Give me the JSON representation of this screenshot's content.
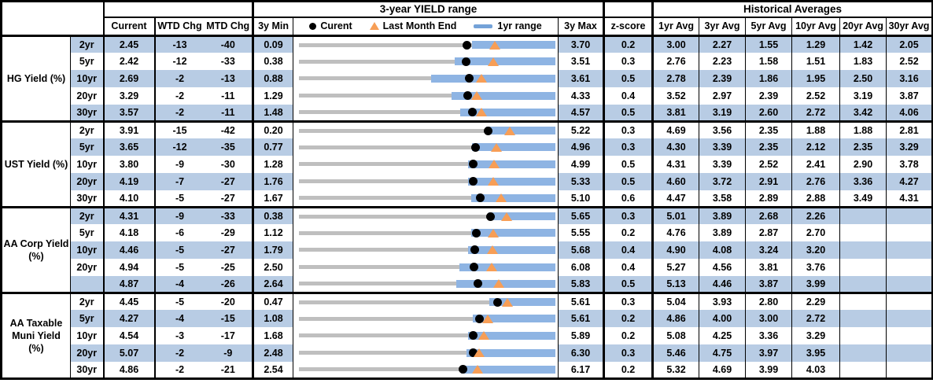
{
  "colors": {
    "row_shade_blue": "#b8cce4",
    "range_bar_blue": "#8eb4e3",
    "track_gray": "#bfbfbf",
    "triangle_orange": "#f79e56",
    "legend_dash_blue": "#74a2d8",
    "dot_black": "#000000",
    "border_black": "#000000"
  },
  "chart_data": {
    "type": "table",
    "groups_header": {
      "range": "3-year YIELD range",
      "historical": "Historical Averages"
    },
    "columns": {
      "current": "Current",
      "wtd": "WTD Chg",
      "mtd": "MTD Chg",
      "min": "3y Min",
      "max": "3y Max",
      "z": "z-score",
      "avgs": [
        "1yr Avg",
        "3yr Avg",
        "5yr Avg",
        "10yr Avg",
        "20yr Avg",
        "30yr Avg"
      ]
    },
    "legend": {
      "current": "Curent",
      "last_month_end": "Last Month End",
      "range_1yr": "1yr range"
    },
    "range_chart_encoding": "Per row: gray track spans 3y Min to 3y Max; blue bar = 1yr range; black dot = current yield; orange triangle = last month end (current - MTD chg/100).",
    "sections": [
      {
        "label_lines": [
          "HG Yield (%)"
        ],
        "rows": [
          {
            "tenor": "2yr",
            "current": "2.45",
            "wtd_chg": "-13",
            "mtd_chg": "-40",
            "min_3y": "0.09",
            "max_3y": "3.70",
            "z_score": "0.2",
            "avgs": [
              "3.00",
              "2.27",
              "1.55",
              "1.29",
              "1.42",
              "2.05"
            ],
            "last_month_end": 2.85,
            "range_1yr": [
              2.53,
              3.7
            ]
          },
          {
            "tenor": "5yr",
            "current": "2.42",
            "wtd_chg": "-12",
            "mtd_chg": "-33",
            "min_3y": "0.38",
            "max_3y": "3.51",
            "z_score": "0.3",
            "avgs": [
              "2.76",
              "2.23",
              "1.58",
              "1.51",
              "1.83",
              "2.52"
            ],
            "last_month_end": 2.75,
            "range_1yr": [
              2.28,
              3.51
            ]
          },
          {
            "tenor": "10yr",
            "current": "2.69",
            "wtd_chg": "-2",
            "mtd_chg": "-13",
            "min_3y": "0.88",
            "max_3y": "3.61",
            "z_score": "0.5",
            "avgs": [
              "2.78",
              "2.39",
              "1.86",
              "1.95",
              "2.50",
              "3.16"
            ],
            "last_month_end": 2.82,
            "range_1yr": [
              2.29,
              3.61
            ]
          },
          {
            "tenor": "20yr",
            "current": "3.29",
            "wtd_chg": "-2",
            "mtd_chg": "-11",
            "min_3y": "1.29",
            "max_3y": "4.33",
            "z_score": "0.4",
            "avgs": [
              "3.52",
              "2.97",
              "2.39",
              "2.52",
              "3.19",
              "3.87"
            ],
            "last_month_end": 3.4,
            "range_1yr": [
              3.1,
              4.33
            ]
          },
          {
            "tenor": "30yr",
            "current": "3.57",
            "wtd_chg": "-2",
            "mtd_chg": "-11",
            "min_3y": "1.48",
            "max_3y": "4.57",
            "z_score": "0.5",
            "avgs": [
              "3.81",
              "3.19",
              "2.60",
              "2.72",
              "3.42",
              "4.06"
            ],
            "last_month_end": 3.68,
            "range_1yr": [
              3.42,
              4.57
            ]
          }
        ]
      },
      {
        "label_lines": [
          "UST Yield (%)"
        ],
        "rows": [
          {
            "tenor": "2yr",
            "current": "3.91",
            "wtd_chg": "-15",
            "mtd_chg": "-42",
            "min_3y": "0.20",
            "max_3y": "5.22",
            "z_score": "0.3",
            "avgs": [
              "4.69",
              "3.56",
              "2.35",
              "1.88",
              "1.88",
              "2.81"
            ],
            "last_month_end": 4.33,
            "range_1yr": [
              3.87,
              5.22
            ]
          },
          {
            "tenor": "5yr",
            "current": "3.65",
            "wtd_chg": "-12",
            "mtd_chg": "-35",
            "min_3y": "0.77",
            "max_3y": "4.96",
            "z_score": "0.3",
            "avgs": [
              "4.30",
              "3.39",
              "2.35",
              "2.12",
              "2.35",
              "3.29"
            ],
            "last_month_end": 4.0,
            "range_1yr": [
              3.6,
              4.96
            ]
          },
          {
            "tenor": "10yr",
            "current": "3.80",
            "wtd_chg": "-9",
            "mtd_chg": "-30",
            "min_3y": "1.28",
            "max_3y": "4.99",
            "z_score": "0.5",
            "avgs": [
              "4.31",
              "3.39",
              "2.52",
              "2.41",
              "2.90",
              "3.78"
            ],
            "last_month_end": 4.1,
            "range_1yr": [
              3.73,
              4.99
            ]
          },
          {
            "tenor": "20yr",
            "current": "4.19",
            "wtd_chg": "-7",
            "mtd_chg": "-27",
            "min_3y": "1.76",
            "max_3y": "5.33",
            "z_score": "0.5",
            "avgs": [
              "4.60",
              "3.72",
              "2.91",
              "2.76",
              "3.36",
              "4.27"
            ],
            "last_month_end": 4.46,
            "range_1yr": [
              4.11,
              5.33
            ]
          },
          {
            "tenor": "30yr",
            "current": "4.10",
            "wtd_chg": "-5",
            "mtd_chg": "-27",
            "min_3y": "1.67",
            "max_3y": "5.10",
            "z_score": "0.6",
            "avgs": [
              "4.47",
              "3.58",
              "2.89",
              "2.88",
              "3.49",
              "4.31"
            ],
            "last_month_end": 4.37,
            "range_1yr": [
              3.97,
              5.1
            ]
          }
        ]
      },
      {
        "label_lines": [
          "AA Corp Yield",
          "(%)"
        ],
        "rows": [
          {
            "tenor": "2yr",
            "current": "4.31",
            "wtd_chg": "-9",
            "mtd_chg": "-33",
            "min_3y": "0.38",
            "max_3y": "5.65",
            "z_score": "0.3",
            "avgs": [
              "5.01",
              "3.89",
              "2.68",
              "2.26",
              "",
              ""
            ],
            "last_month_end": 4.64,
            "range_1yr": [
              4.27,
              5.65
            ]
          },
          {
            "tenor": "5yr",
            "current": "4.18",
            "wtd_chg": "-6",
            "mtd_chg": "-29",
            "min_3y": "1.12",
            "max_3y": "5.55",
            "z_score": "0.2",
            "avgs": [
              "4.76",
              "3.89",
              "2.87",
              "2.70",
              "",
              ""
            ],
            "last_month_end": 4.47,
            "range_1yr": [
              4.1,
              5.55
            ]
          },
          {
            "tenor": "10yr",
            "current": "4.46",
            "wtd_chg": "-5",
            "mtd_chg": "-27",
            "min_3y": "1.79",
            "max_3y": "5.68",
            "z_score": "0.4",
            "avgs": [
              "4.90",
              "4.08",
              "3.24",
              "3.20",
              "",
              ""
            ],
            "last_month_end": 4.73,
            "range_1yr": [
              4.35,
              5.68
            ]
          },
          {
            "tenor": "20yr",
            "current": "4.94",
            "wtd_chg": "-5",
            "mtd_chg": "-25",
            "min_3y": "2.50",
            "max_3y": "6.08",
            "z_score": "0.4",
            "avgs": [
              "5.27",
              "4.56",
              "3.81",
              "3.76",
              "",
              ""
            ],
            "last_month_end": 5.19,
            "range_1yr": [
              4.74,
              6.08
            ]
          },
          {
            "tenor": "",
            "current": "4.87",
            "wtd_chg": "-4",
            "mtd_chg": "-26",
            "min_3y": "2.64",
            "max_3y": "5.83",
            "z_score": "0.5",
            "avgs": [
              "5.13",
              "4.46",
              "3.87",
              "3.99",
              "",
              ""
            ],
            "last_month_end": 5.13,
            "range_1yr": [
              4.6,
              5.83
            ]
          }
        ]
      },
      {
        "label_lines": [
          "AA Taxable",
          "Muni Yield",
          "(%)"
        ],
        "rows": [
          {
            "tenor": "2yr",
            "current": "4.45",
            "wtd_chg": "-5",
            "mtd_chg": "-20",
            "min_3y": "0.47",
            "max_3y": "5.61",
            "z_score": "0.3",
            "avgs": [
              "5.04",
              "3.93",
              "2.80",
              "2.29",
              "",
              ""
            ],
            "last_month_end": 4.65,
            "range_1yr": [
              4.29,
              5.61
            ]
          },
          {
            "tenor": "5yr",
            "current": "4.27",
            "wtd_chg": "-4",
            "mtd_chg": "-15",
            "min_3y": "1.08",
            "max_3y": "5.61",
            "z_score": "0.2",
            "avgs": [
              "4.86",
              "4.00",
              "3.00",
              "2.72",
              "",
              ""
            ],
            "last_month_end": 4.42,
            "range_1yr": [
              4.15,
              5.61
            ]
          },
          {
            "tenor": "10yr",
            "current": "4.54",
            "wtd_chg": "-3",
            "mtd_chg": "-17",
            "min_3y": "1.68",
            "max_3y": "5.89",
            "z_score": "0.2",
            "avgs": [
              "5.08",
              "4.25",
              "3.36",
              "3.29",
              "",
              ""
            ],
            "last_month_end": 4.71,
            "range_1yr": [
              4.45,
              5.89
            ]
          },
          {
            "tenor": "20yr",
            "current": "5.07",
            "wtd_chg": "-2",
            "mtd_chg": "-9",
            "min_3y": "2.48",
            "max_3y": "6.30",
            "z_score": "0.3",
            "avgs": [
              "5.46",
              "4.75",
              "3.97",
              "3.95",
              "",
              ""
            ],
            "last_month_end": 5.16,
            "range_1yr": [
              4.98,
              6.3
            ]
          },
          {
            "tenor": "30yr",
            "current": "4.86",
            "wtd_chg": "-2",
            "mtd_chg": "-21",
            "min_3y": "2.54",
            "max_3y": "6.17",
            "z_score": "0.2",
            "avgs": [
              "5.32",
              "4.69",
              "3.99",
              "4.03",
              "",
              ""
            ],
            "last_month_end": 5.07,
            "range_1yr": [
              4.83,
              6.17
            ]
          }
        ]
      }
    ]
  }
}
